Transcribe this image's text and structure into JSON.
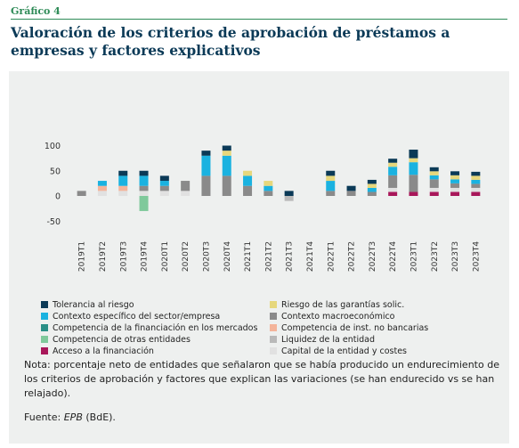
{
  "header": {
    "eyebrow": "Gráfico 4",
    "title": "Valoración de los criterios de aprobación de préstamos a empresas y factores explicativos"
  },
  "chart_data": {
    "type": "bar",
    "stacked": true,
    "ylim": [
      -50,
      100
    ],
    "yticks": [
      -50,
      0,
      50,
      100
    ],
    "grid": false,
    "legend_placement": "bottom",
    "categories": [
      "2019T1",
      "2019T2",
      "2019T3",
      "2019T4",
      "2020T1",
      "2020T2",
      "2020T3",
      "2020T4",
      "2021T1",
      "2021T2",
      "2021T3",
      "2021T4",
      "2022T1",
      "2022T2",
      "2022T3",
      "2022T4",
      "2023T1",
      "2023T2",
      "2023T3",
      "2023T4"
    ],
    "series": [
      {
        "name": "Acceso a la financiación",
        "color": "#a8175a",
        "values": [
          0,
          0,
          0,
          0,
          0,
          0,
          0,
          0,
          0,
          0,
          0,
          0,
          0,
          0,
          0,
          8,
          8,
          8,
          8,
          8
        ]
      },
      {
        "name": "Capital de la entidad y costes",
        "color": "#e1e1e1",
        "values": [
          0,
          10,
          10,
          10,
          10,
          10,
          0,
          0,
          0,
          0,
          0,
          0,
          0,
          0,
          0,
          8,
          0,
          8,
          8,
          8
        ]
      },
      {
        "name": "Liquidez de la entidad",
        "color": "#b9b9b9",
        "values": [
          0,
          0,
          0,
          0,
          0,
          0,
          0,
          0,
          0,
          0,
          -10,
          0,
          0,
          0,
          0,
          0,
          0,
          0,
          0,
          0
        ]
      },
      {
        "name": "Contexto macroeconómico",
        "color": "#8a8a8a",
        "values": [
          10,
          0,
          0,
          10,
          10,
          20,
          40,
          40,
          20,
          10,
          0,
          0,
          10,
          10,
          8,
          25,
          34,
          17,
          9,
          8
        ]
      },
      {
        "name": "Competencia de inst. no bancarias",
        "color": "#f4b49a",
        "values": [
          0,
          10,
          10,
          0,
          0,
          0,
          0,
          0,
          0,
          0,
          0,
          0,
          0,
          0,
          0,
          0,
          0,
          0,
          0,
          0
        ]
      },
      {
        "name": "Competencia de otras entidades",
        "color": "#7fc99b",
        "values": [
          0,
          0,
          0,
          -30,
          0,
          0,
          0,
          0,
          0,
          0,
          0,
          0,
          0,
          0,
          0,
          0,
          0,
          0,
          0,
          0
        ]
      },
      {
        "name": "Competencia de la financiación en los mercados",
        "color": "#2a8f86",
        "values": [
          0,
          0,
          0,
          0,
          0,
          0,
          0,
          0,
          0,
          0,
          0,
          0,
          0,
          0,
          0,
          0,
          0,
          0,
          0,
          0
        ]
      },
      {
        "name": "Contexto específico del sector/empresa",
        "color": "#1ab2e0",
        "values": [
          0,
          10,
          20,
          20,
          10,
          0,
          40,
          40,
          20,
          10,
          0,
          0,
          20,
          0,
          8,
          17,
          25,
          8,
          8,
          8
        ]
      },
      {
        "name": "Riesgo de las garantías solic.",
        "color": "#e6d77c",
        "values": [
          0,
          0,
          0,
          0,
          0,
          0,
          0,
          10,
          10,
          10,
          0,
          0,
          10,
          0,
          8,
          8,
          8,
          8,
          8,
          8
        ]
      },
      {
        "name": "Tolerancia al riesgo",
        "color": "#0b3a57",
        "values": [
          0,
          0,
          10,
          10,
          10,
          0,
          10,
          10,
          0,
          0,
          10,
          0,
          10,
          10,
          8,
          8,
          17,
          8,
          8,
          8
        ]
      }
    ]
  },
  "legend": [
    {
      "label": "Tolerancia al riesgo",
      "color": "#0b3a57"
    },
    {
      "label": "Riesgo de las garantías solic.",
      "color": "#e6d77c"
    },
    {
      "label": "Contexto específico del sector/empresa",
      "color": "#1ab2e0"
    },
    {
      "label": "Contexto macroeconómico",
      "color": "#8a8a8a"
    },
    {
      "label": "Competencia de la financiación en los mercados",
      "color": "#2a8f86"
    },
    {
      "label": "Competencia de inst. no bancarias",
      "color": "#f4b49a"
    },
    {
      "label": "Competencia de otras entidades",
      "color": "#7fc99b"
    },
    {
      "label": "Liquidez de la entidad",
      "color": "#b9b9b9"
    },
    {
      "label": "Acceso a la financiación",
      "color": "#a8175a"
    },
    {
      "label": "Capital de la entidad y costes",
      "color": "#e1e1e1"
    }
  ],
  "note": "Nota: porcentaje neto de entidades que señalaron que se había producido un endurecimiento de los criterios de aprobación y factores que explican las variaciones (se han endurecido vs se han relajado).",
  "source": {
    "prefix": "Fuente: ",
    "name": "EPB",
    "suffix": " (BdE)."
  }
}
